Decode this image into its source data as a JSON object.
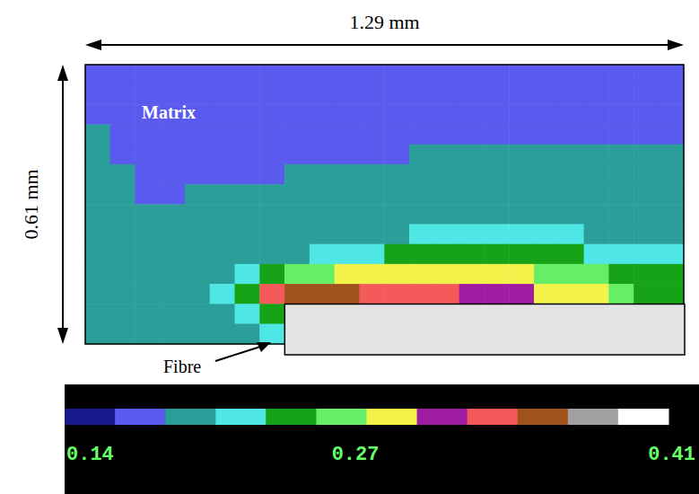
{
  "chart_data": {
    "type": "heatmap",
    "tick_labels": false,
    "labels": {
      "matrix": "Matrix",
      "fibre": "Fibre",
      "width": "1.29 mm",
      "height": "0.61 mm"
    },
    "colorbar": {
      "range": [
        0.14,
        0.41
      ],
      "ticks": [
        0.14,
        0.27,
        0.41
      ],
      "colors": [
        "#1a1a8c",
        "#5a5aee",
        "#2b9e9a",
        "#4fe6e6",
        "#17a317",
        "#66ee66",
        "#f2f24a",
        "#a01ca0",
        "#f55a5a",
        "#a0521c",
        "#a0a0a0",
        "#ffffff"
      ]
    },
    "cells": [
      [
        0.175,
        0.175,
        0.175,
        0.175,
        0.175,
        0.175,
        0.175,
        0.175,
        0.175,
        0.175,
        0.175,
        0.175,
        0.175,
        0.175,
        0.175,
        0.175,
        0.175,
        0.175,
        0.175,
        0.175,
        0.175,
        0.175,
        0.175,
        0.175
      ],
      [
        0.175,
        0.175,
        0.175,
        0.175,
        0.175,
        0.175,
        0.175,
        0.175,
        0.175,
        0.175,
        0.175,
        0.175,
        0.175,
        0.175,
        0.175,
        0.175,
        0.175,
        0.175,
        0.175,
        0.175,
        0.175,
        0.175,
        0.175,
        0.175
      ],
      [
        0.175,
        0.175,
        0.175,
        0.175,
        0.175,
        0.175,
        0.175,
        0.175,
        0.175,
        0.175,
        0.175,
        0.175,
        0.175,
        0.175,
        0.175,
        0.175,
        0.175,
        0.175,
        0.175,
        0.175,
        0.175,
        0.175,
        0.175,
        0.175
      ],
      [
        0.195,
        0.175,
        0.175,
        0.175,
        0.175,
        0.175,
        0.175,
        0.175,
        0.175,
        0.175,
        0.175,
        0.175,
        0.175,
        0.175,
        0.175,
        0.175,
        0.175,
        0.175,
        0.175,
        0.175,
        0.175,
        0.175,
        0.175,
        0.175
      ],
      [
        0.195,
        0.175,
        0.175,
        0.175,
        0.175,
        0.175,
        0.175,
        0.175,
        0.175,
        0.175,
        0.175,
        0.175,
        0.175,
        0.195,
        0.195,
        0.195,
        0.195,
        0.195,
        0.195,
        0.195,
        0.195,
        0.195,
        0.195,
        0.195
      ],
      [
        0.195,
        0.195,
        0.175,
        0.175,
        0.175,
        0.175,
        0.175,
        0.175,
        0.195,
        0.195,
        0.195,
        0.195,
        0.195,
        0.195,
        0.195,
        0.195,
        0.195,
        0.195,
        0.195,
        0.195,
        0.195,
        0.195,
        0.195,
        0.195
      ],
      [
        0.195,
        0.195,
        0.175,
        0.175,
        0.195,
        0.195,
        0.195,
        0.195,
        0.195,
        0.195,
        0.195,
        0.195,
        0.195,
        0.195,
        0.195,
        0.195,
        0.195,
        0.195,
        0.195,
        0.195,
        0.195,
        0.195,
        0.195,
        0.195
      ],
      [
        0.195,
        0.195,
        0.195,
        0.195,
        0.195,
        0.195,
        0.195,
        0.195,
        0.195,
        0.195,
        0.195,
        0.195,
        0.195,
        0.195,
        0.195,
        0.195,
        0.195,
        0.195,
        0.195,
        0.195,
        0.195,
        0.195,
        0.195,
        0.195
      ],
      [
        0.195,
        0.195,
        0.195,
        0.195,
        0.195,
        0.195,
        0.195,
        0.195,
        0.195,
        0.195,
        0.195,
        0.195,
        0.195,
        0.22,
        0.22,
        0.22,
        0.22,
        0.22,
        0.22,
        0.22,
        0.195,
        0.195,
        0.195,
        0.195
      ],
      [
        0.195,
        0.195,
        0.195,
        0.195,
        0.195,
        0.195,
        0.195,
        0.195,
        0.195,
        0.22,
        0.22,
        0.22,
        0.24,
        0.24,
        0.24,
        0.24,
        0.24,
        0.24,
        0.24,
        0.24,
        0.22,
        0.22,
        0.22,
        0.22
      ],
      [
        0.195,
        0.195,
        0.195,
        0.195,
        0.195,
        0.195,
        0.22,
        0.24,
        0.265,
        0.265,
        0.285,
        0.285,
        0.285,
        0.285,
        0.285,
        0.285,
        0.285,
        0.285,
        0.265,
        0.265,
        0.265,
        0.24,
        0.24,
        0.24
      ],
      [
        0.195,
        0.195,
        0.195,
        0.195,
        0.195,
        0.22,
        0.24,
        0.33,
        0.355,
        0.355,
        0.355,
        0.33,
        0.33,
        0.33,
        0.33,
        0.31,
        0.31,
        0.31,
        0.285,
        0.285,
        0.285,
        0.265,
        0.24,
        0.24
      ],
      [
        0.195,
        0.195,
        0.195,
        0.195,
        0.195,
        0.195,
        0.22,
        0.24,
        null,
        null,
        null,
        null,
        null,
        null,
        null,
        null,
        null,
        null,
        null,
        null,
        null,
        null,
        null,
        null
      ],
      [
        0.195,
        0.195,
        0.195,
        0.195,
        0.195,
        0.195,
        0.195,
        0.22,
        null,
        null,
        null,
        null,
        null,
        null,
        null,
        null,
        null,
        null,
        null,
        null,
        null,
        null,
        null,
        null
      ]
    ]
  }
}
